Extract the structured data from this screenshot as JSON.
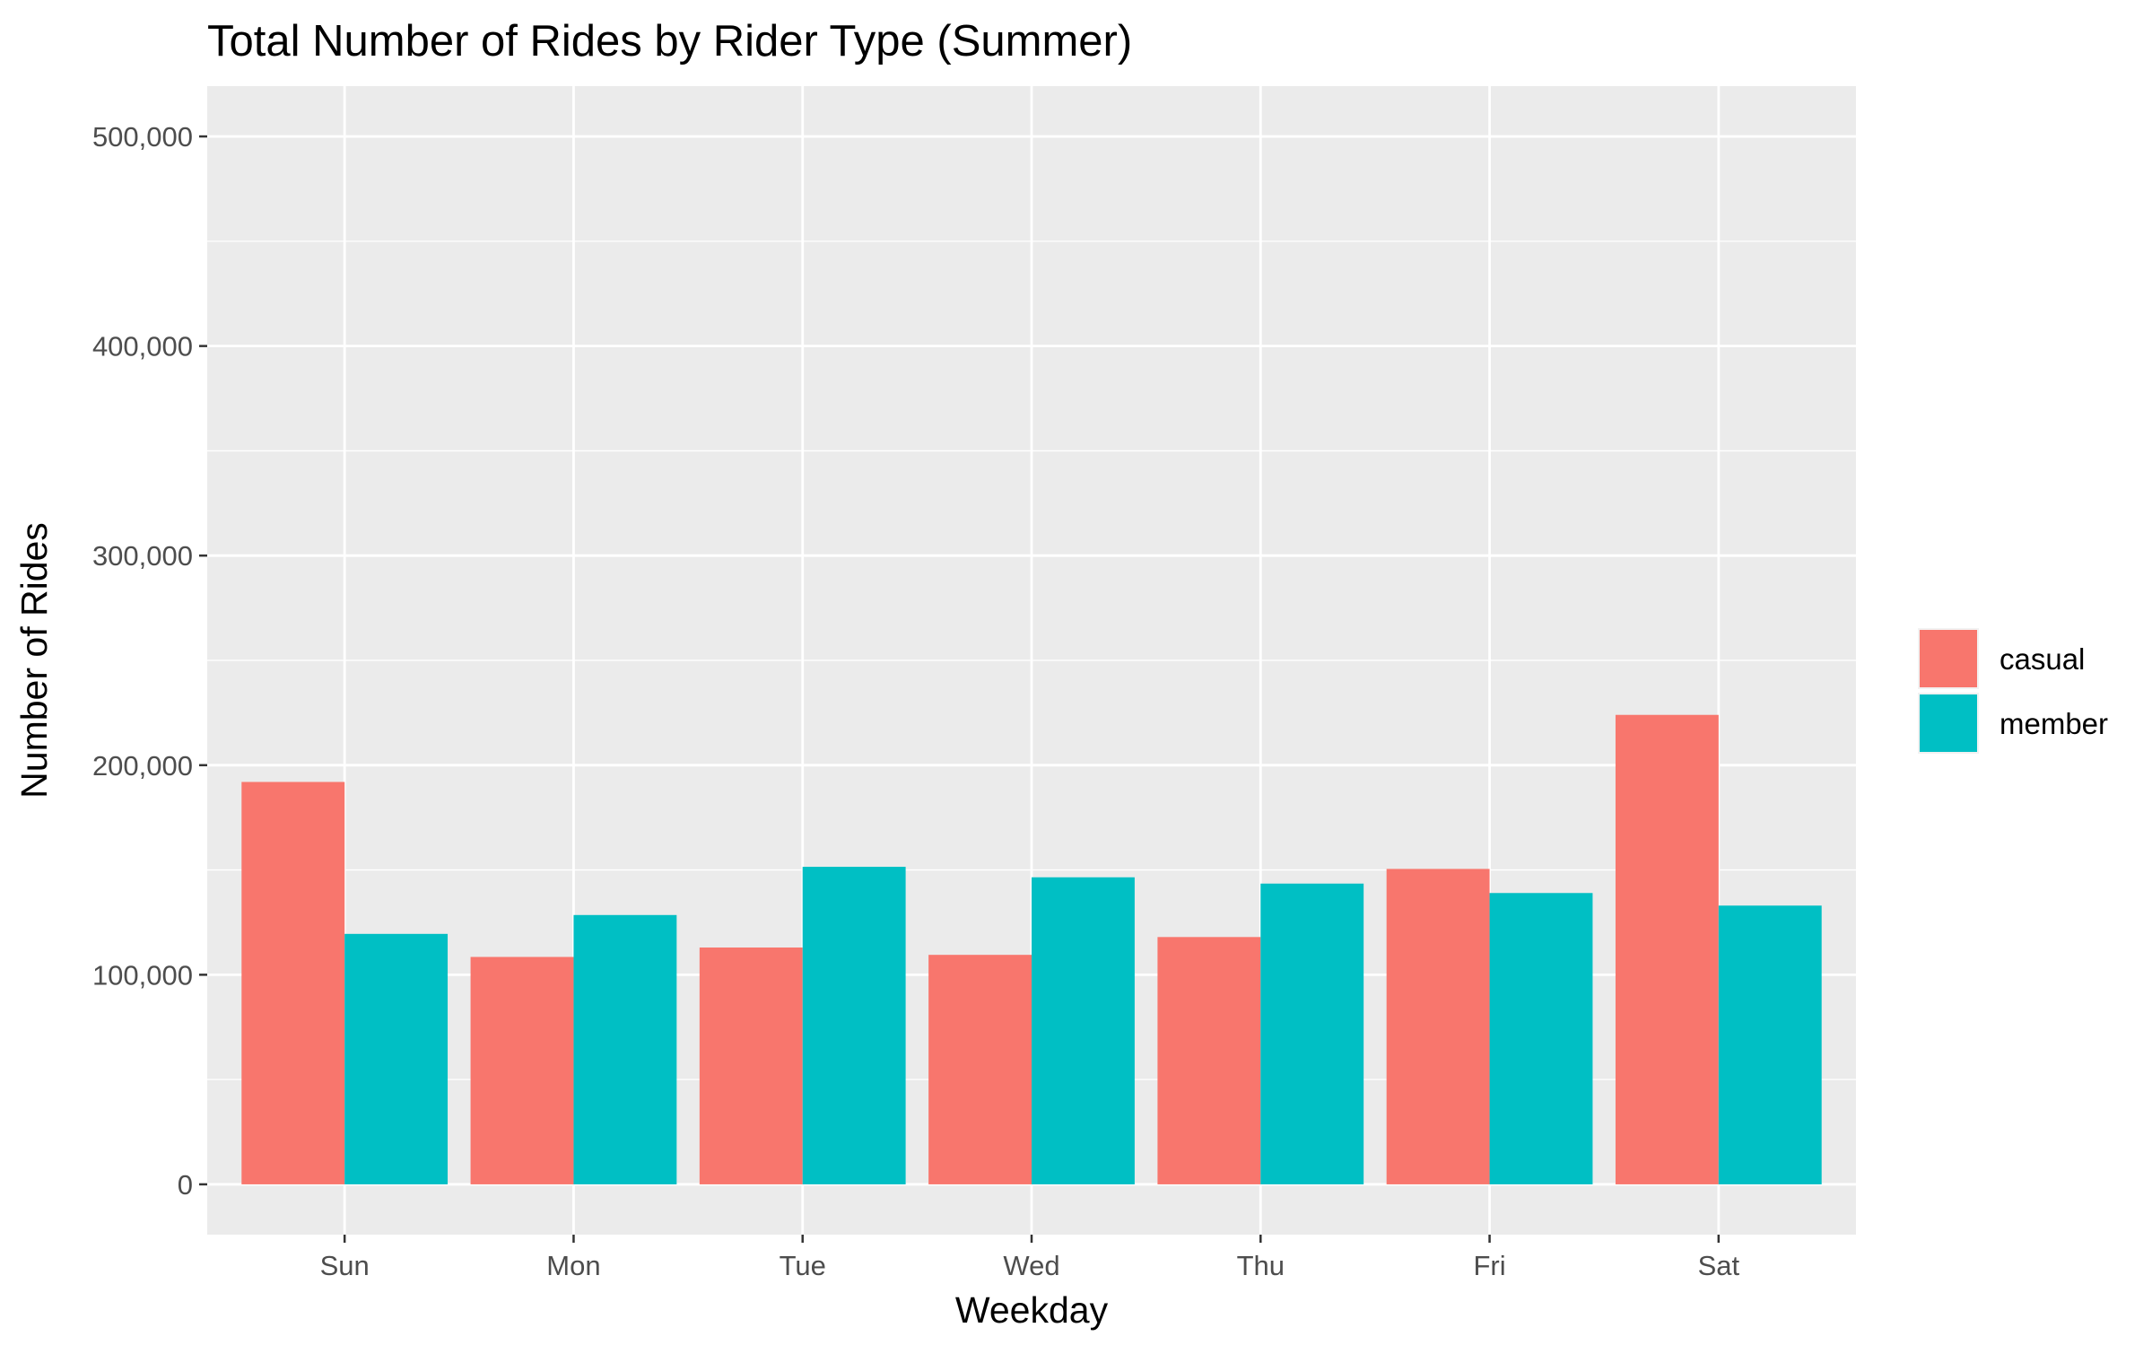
{
  "chart_data": {
    "type": "bar",
    "title": "Total Number of Rides by Rider Type (Summer)",
    "xlabel": "Weekday",
    "ylabel": "Number of Rides",
    "categories": [
      "Sun",
      "Mon",
      "Tue",
      "Wed",
      "Thu",
      "Fri",
      "Sat"
    ],
    "series": [
      {
        "name": "casual",
        "color": "#F8766D",
        "values": [
          192000,
          108500,
          113000,
          109500,
          118000,
          150500,
          224000
        ]
      },
      {
        "name": "member",
        "color": "#00BFC4",
        "values": [
          119500,
          128500,
          151500,
          146500,
          143500,
          139000,
          133000
        ]
      }
    ],
    "ylim": [
      -24000,
      524000
    ],
    "yticks": [
      0,
      100000,
      200000,
      300000,
      400000,
      500000
    ],
    "ytick_labels": [
      "0",
      "100,000",
      "200,000",
      "300,000",
      "400,000",
      "500,000"
    ],
    "grid": true,
    "legend_position": "right",
    "panel_background": "#EBEBEB"
  }
}
